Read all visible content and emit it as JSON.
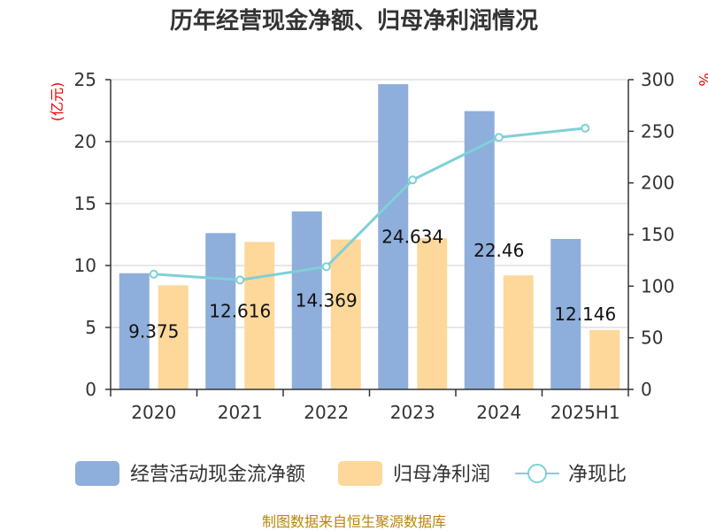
{
  "chart_data": {
    "type": "bar",
    "title": "历年经营现金净额、归母净利润情况",
    "categories": [
      "2020",
      "2021",
      "2022",
      "2023",
      "2024",
      "2025H1"
    ],
    "series": [
      {
        "name": "经营活动现金流净额",
        "chart_type": "bar",
        "axis": "left",
        "color": "#8eaedc",
        "values": [
          9.375,
          12.616,
          14.369,
          24.634,
          22.46,
          12.146
        ],
        "labels": [
          "9.375",
          "12.616",
          "14.369",
          "24.634",
          "22.46",
          "12.146"
        ]
      },
      {
        "name": "归母净利润",
        "chart_type": "bar",
        "axis": "left",
        "color": "#fdd89a",
        "values": [
          8.4,
          11.9,
          12.1,
          12.2,
          9.2,
          4.8
        ]
      },
      {
        "name": "净现比",
        "chart_type": "line",
        "axis": "right",
        "color": "#7fd0d6",
        "values": [
          111.6,
          106.0,
          118.8,
          202.9,
          244.1,
          253.0
        ]
      }
    ],
    "y_left": {
      "label": "(亿元)",
      "ylim": [
        0,
        25
      ],
      "ticks": [
        "0",
        "5",
        "10",
        "15",
        "20",
        "25"
      ]
    },
    "y_right": {
      "label": "%",
      "ylim": [
        0,
        300
      ],
      "ticks": [
        "0",
        "50",
        "100",
        "150",
        "200",
        "250",
        "300"
      ]
    },
    "grid": true,
    "legend_position": "bottom"
  },
  "source_text": "制图数据来自恒生聚源数据库"
}
